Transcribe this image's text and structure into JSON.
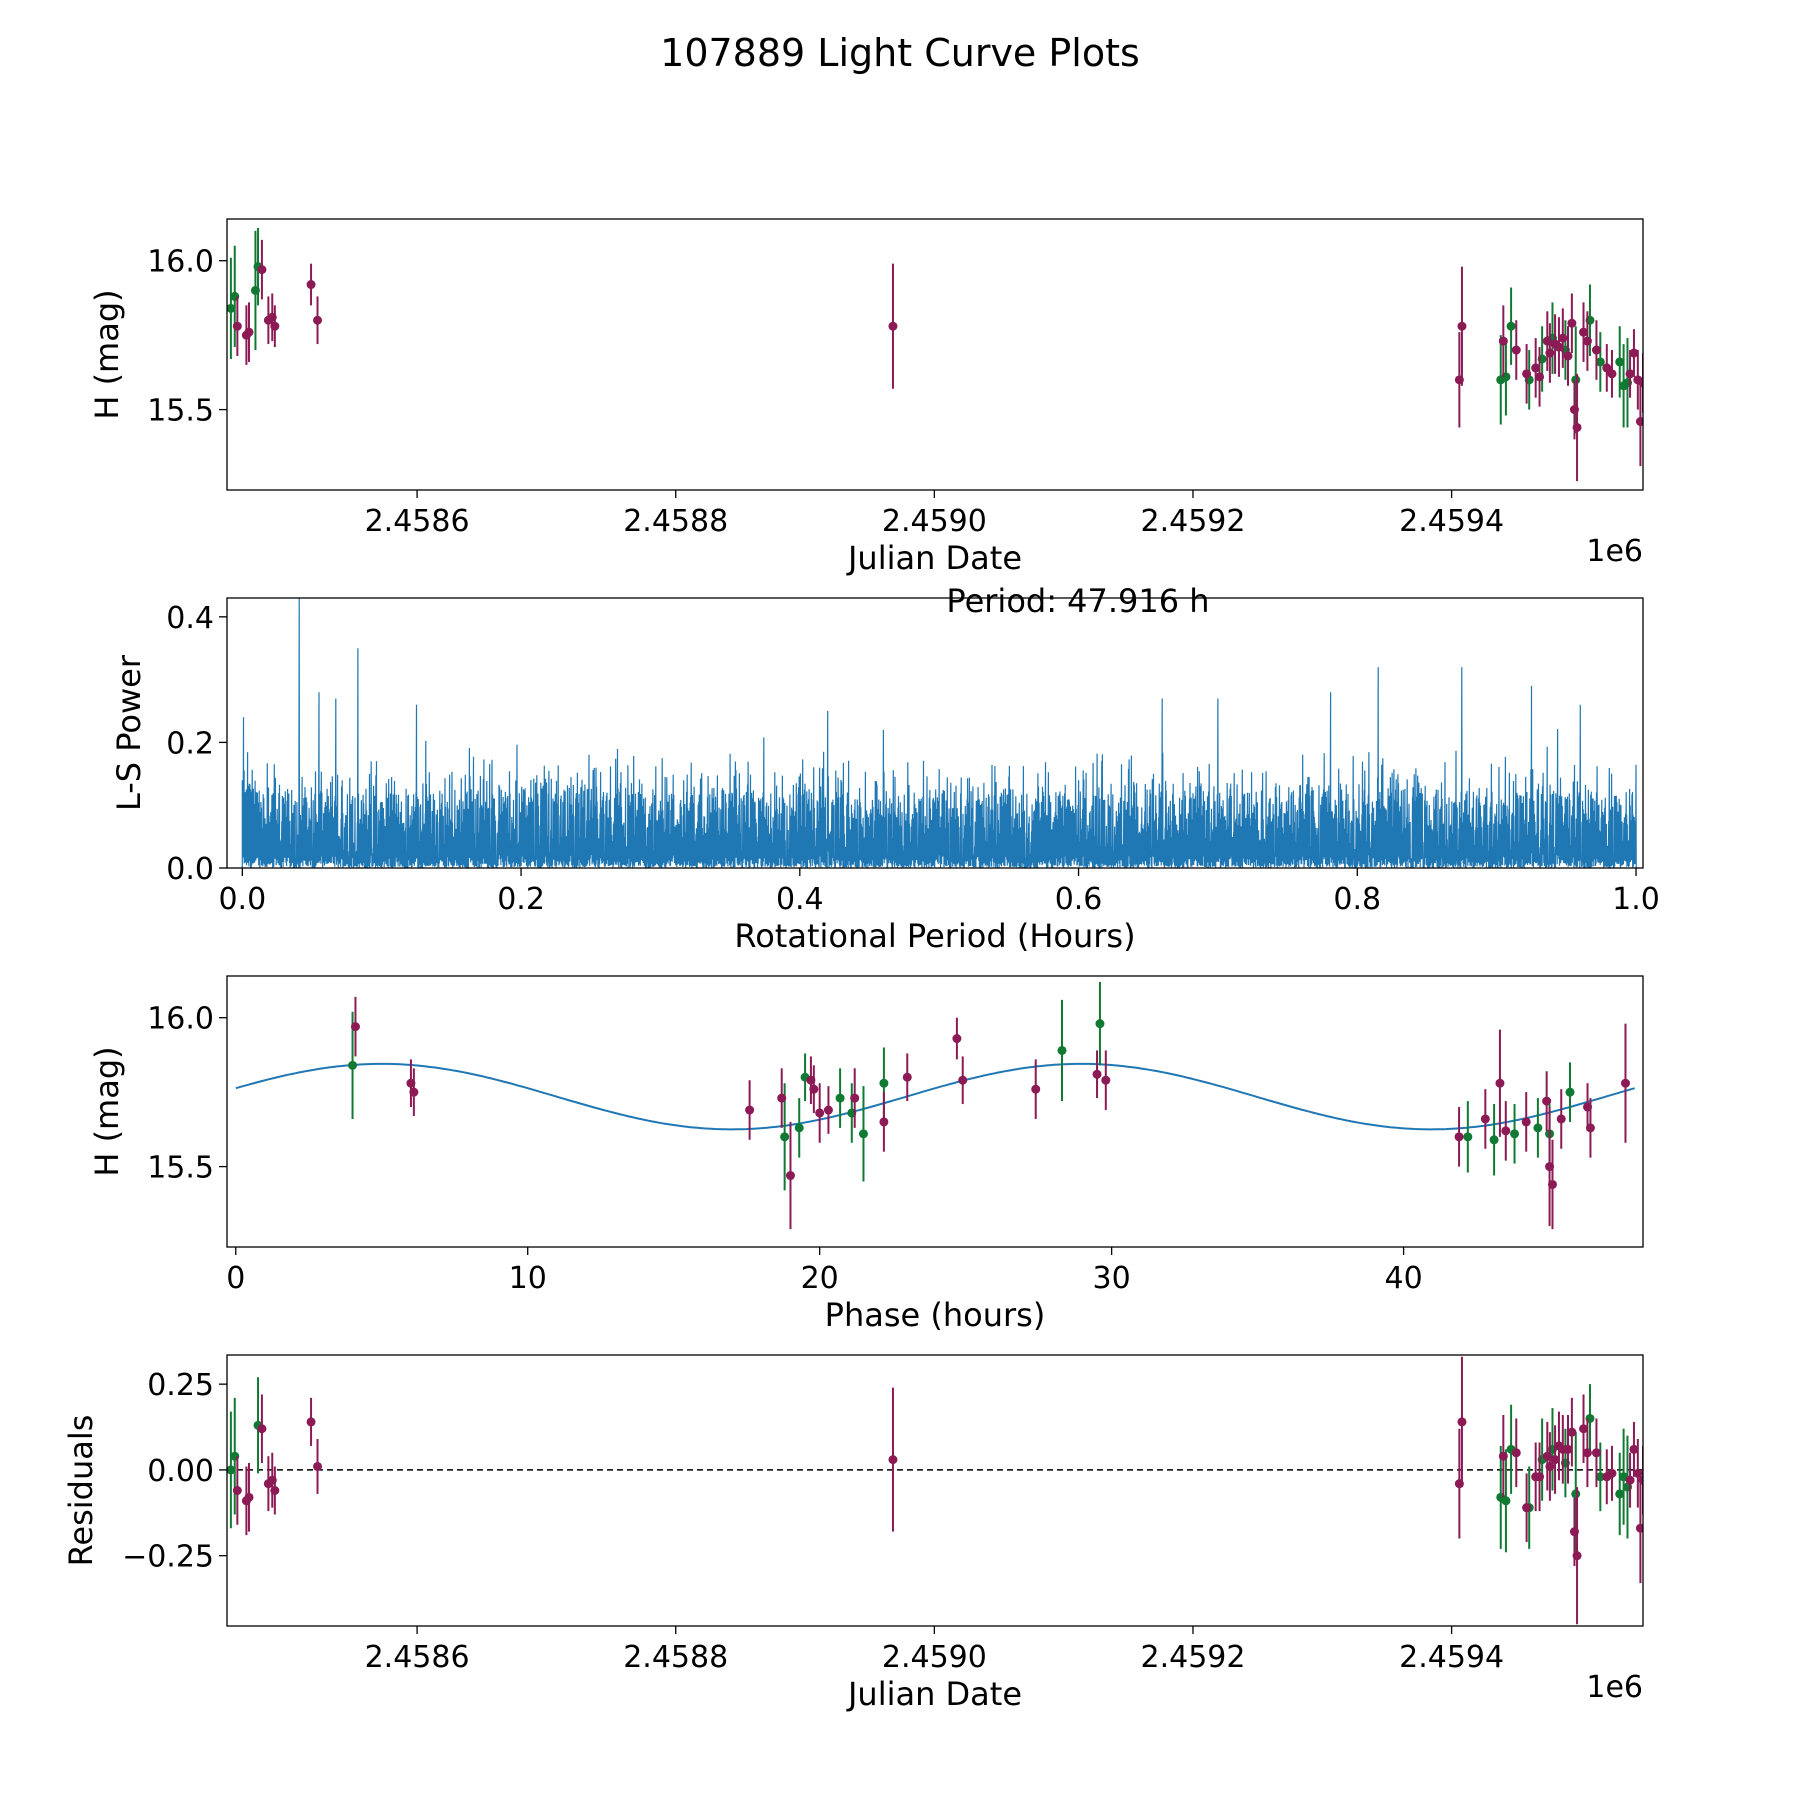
{
  "figure_title": "107889 Light Curve Plots",
  "colors": {
    "fit": "#1f77b4",
    "periodogram": "#1f77b4",
    "filter_g": "#107a33",
    "filter_r": "#8b1a55",
    "zero_line": "#000000"
  },
  "chart_data": [
    {
      "id": "lightcurve",
      "type": "scatter",
      "xlabel": "Julian Date",
      "ylabel": "H (mag)",
      "x_offset_label": "1e6",
      "x_ticks": [
        "2.4586",
        "2.4588",
        "2.4590",
        "2.4592",
        "2.4594"
      ],
      "y_ticks": [
        "15.5",
        "16.0"
      ],
      "xlim": [
        2458453,
        2459548
      ],
      "ylim": [
        15.23,
        16.14
      ],
      "series": [
        {
          "name": "g",
          "color": "#107a33",
          "points": [
            [
              2458456,
              15.84,
              0.17
            ],
            [
              2458459,
              15.88,
              0.17
            ],
            [
              2458477,
              15.98,
              0.13
            ],
            [
              2458475,
              15.9,
              0.2
            ],
            [
              2459438,
              15.6,
              0.15
            ],
            [
              2459442,
              15.61,
              0.13
            ],
            [
              2459446,
              15.78,
              0.13
            ],
            [
              2459460,
              15.6,
              0.1
            ],
            [
              2459470,
              15.67,
              0.11
            ],
            [
              2459478,
              15.74,
              0.12
            ],
            [
              2459488,
              15.7,
              0.1
            ],
            [
              2459496,
              15.6,
              0.18
            ],
            [
              2459507,
              15.8,
              0.12
            ],
            [
              2459515,
              15.66,
              0.1
            ],
            [
              2459530,
              15.66,
              0.12
            ],
            [
              2459533,
              15.58,
              0.14
            ],
            [
              2459536,
              15.59,
              0.15
            ]
          ]
        },
        {
          "name": "r",
          "color": "#8b1a55",
          "points": [
            [
              2458461,
              15.78,
              0.1
            ],
            [
              2458468,
              15.75,
              0.1
            ],
            [
              2458470,
              15.76,
              0.1
            ],
            [
              2458480,
              15.97,
              0.1
            ],
            [
              2458485,
              15.8,
              0.08
            ],
            [
              2458488,
              15.81,
              0.08
            ],
            [
              2458490,
              15.78,
              0.07
            ],
            [
              2458518,
              15.92,
              0.07
            ],
            [
              2458523,
              15.8,
              0.08
            ],
            [
              2458968,
              15.78,
              0.21
            ],
            [
              2459406,
              15.6,
              0.16
            ],
            [
              2459408,
              15.78,
              0.2
            ],
            [
              2459440,
              15.73,
              0.12
            ],
            [
              2459450,
              15.7,
              0.1
            ],
            [
              2459458,
              15.62,
              0.1
            ],
            [
              2459465,
              15.64,
              0.1
            ],
            [
              2459468,
              15.61,
              0.1
            ],
            [
              2459474,
              15.73,
              0.1
            ],
            [
              2459476,
              15.69,
              0.1
            ],
            [
              2459480,
              15.72,
              0.1
            ],
            [
              2459483,
              15.71,
              0.1
            ],
            [
              2459486,
              15.74,
              0.1
            ],
            [
              2459490,
              15.68,
              0.1
            ],
            [
              2459493,
              15.79,
              0.1
            ],
            [
              2459495,
              15.5,
              0.1
            ],
            [
              2459497,
              15.44,
              0.18
            ],
            [
              2459502,
              15.76,
              0.1
            ],
            [
              2459505,
              15.73,
              0.1
            ],
            [
              2459512,
              15.7,
              0.1
            ],
            [
              2459520,
              15.64,
              0.08
            ],
            [
              2459524,
              15.62,
              0.08
            ],
            [
              2459538,
              15.62,
              0.08
            ],
            [
              2459541,
              15.69,
              0.08
            ],
            [
              2459544,
              15.6,
              0.1
            ],
            [
              2459546,
              15.46,
              0.15
            ],
            [
              2459548,
              15.59,
              0.1
            ]
          ]
        }
      ]
    },
    {
      "id": "periodogram",
      "type": "line",
      "xlabel": "Rotational Period (Hours)",
      "ylabel": "L-S Power",
      "annotation": "Period: 47.916 h",
      "x_ticks": [
        "0.0",
        "0.2",
        "0.4",
        "0.6",
        "0.8",
        "1.0"
      ],
      "y_ticks": [
        "0.0",
        "0.2",
        "0.4"
      ],
      "xlim": [
        -0.011,
        1.005
      ],
      "ylim": [
        0,
        0.43
      ],
      "color": "#1f77b4",
      "peaks": [
        [
          0.041,
          0.43
        ],
        [
          0.083,
          0.35
        ],
        [
          0.055,
          0.28
        ],
        [
          0.067,
          0.27
        ],
        [
          0.125,
          0.26
        ],
        [
          0.815,
          0.32
        ],
        [
          0.875,
          0.32
        ],
        [
          0.781,
          0.28
        ],
        [
          0.66,
          0.27
        ],
        [
          0.7,
          0.27
        ],
        [
          0.925,
          0.29
        ],
        [
          0.96,
          0.26
        ],
        [
          0.42,
          0.25
        ],
        [
          0.46,
          0.22
        ],
        [
          0.001,
          0.24
        ]
      ],
      "typical_envelope": [
        0.12,
        0.19
      ]
    },
    {
      "id": "phased",
      "type": "scatter",
      "xlabel": "Phase (hours)",
      "ylabel": "H (mag)",
      "x_ticks": [
        "0",
        "10",
        "20",
        "30",
        "40"
      ],
      "y_ticks": [
        "15.5",
        "16.0"
      ],
      "xlim": [
        -0.3,
        48.2
      ],
      "ylim": [
        15.23,
        16.14
      ],
      "fit_curve": {
        "mean": 15.735,
        "amplitude": 0.11,
        "period": 23.958,
        "phase_peak": 5.0
      },
      "series": [
        {
          "name": "g",
          "color": "#107a33",
          "points": [
            [
              4.0,
              15.84,
              0.18
            ],
            [
              18.8,
              15.6,
              0.18
            ],
            [
              19.3,
              15.63,
              0.1
            ],
            [
              19.5,
              15.8,
              0.08
            ],
            [
              20.7,
              15.73,
              0.1
            ],
            [
              21.1,
              15.68,
              0.1
            ],
            [
              21.5,
              15.61,
              0.16
            ],
            [
              22.2,
              15.78,
              0.12
            ],
            [
              28.3,
              15.89,
              0.17
            ],
            [
              29.6,
              15.98,
              0.14
            ],
            [
              42.2,
              15.6,
              0.12
            ],
            [
              43.1,
              15.59,
              0.12
            ],
            [
              43.8,
              15.61,
              0.1
            ],
            [
              44.6,
              15.63,
              0.1
            ],
            [
              45.0,
              15.61,
              0.1
            ],
            [
              45.7,
              15.75,
              0.1
            ]
          ]
        },
        {
          "name": "r",
          "color": "#8b1a55",
          "points": [
            [
              4.1,
              15.97,
              0.1
            ],
            [
              6.0,
              15.78,
              0.08
            ],
            [
              6.1,
              15.75,
              0.08
            ],
            [
              17.6,
              15.69,
              0.1
            ],
            [
              18.7,
              15.73,
              0.1
            ],
            [
              19.0,
              15.47,
              0.18
            ],
            [
              19.7,
              15.79,
              0.08
            ],
            [
              19.8,
              15.76,
              0.08
            ],
            [
              20.0,
              15.68,
              0.1
            ],
            [
              20.3,
              15.69,
              0.08
            ],
            [
              21.2,
              15.73,
              0.1
            ],
            [
              22.2,
              15.65,
              0.1
            ],
            [
              23.0,
              15.8,
              0.08
            ],
            [
              24.7,
              15.93,
              0.07
            ],
            [
              24.9,
              15.79,
              0.08
            ],
            [
              27.4,
              15.76,
              0.1
            ],
            [
              29.5,
              15.81,
              0.08
            ],
            [
              29.8,
              15.79,
              0.1
            ],
            [
              41.9,
              15.6,
              0.1
            ],
            [
              42.8,
              15.66,
              0.1
            ],
            [
              43.3,
              15.78,
              0.18
            ],
            [
              43.5,
              15.62,
              0.1
            ],
            [
              44.2,
              15.65,
              0.1
            ],
            [
              44.9,
              15.72,
              0.1
            ],
            [
              45.0,
              15.5,
              0.2
            ],
            [
              45.1,
              15.44,
              0.15
            ],
            [
              45.4,
              15.66,
              0.1
            ],
            [
              46.3,
              15.7,
              0.08
            ],
            [
              46.4,
              15.63,
              0.1
            ],
            [
              47.6,
              15.78,
              0.2
            ]
          ]
        }
      ]
    },
    {
      "id": "residuals",
      "type": "scatter",
      "xlabel": "Julian Date",
      "ylabel": "Residuals",
      "x_offset_label": "1e6",
      "x_ticks": [
        "2.4586",
        "2.4588",
        "2.4590",
        "2.4592",
        "2.4594"
      ],
      "y_ticks": [
        "0.25",
        "0.00",
        "−0.25"
      ],
      "xlim": [
        2458453,
        2459548
      ],
      "ylim": [
        -0.455,
        0.335
      ],
      "zero_line": 0,
      "series": [
        {
          "name": "g",
          "color": "#107a33",
          "points": [
            [
              2458456,
              0.0,
              0.17
            ],
            [
              2458459,
              0.04,
              0.17
            ],
            [
              2458477,
              0.13,
              0.14
            ],
            [
              2459438,
              -0.08,
              0.15
            ],
            [
              2459442,
              -0.09,
              0.15
            ],
            [
              2459446,
              0.06,
              0.13
            ],
            [
              2459460,
              -0.11,
              0.12
            ],
            [
              2459470,
              0.03,
              0.12
            ],
            [
              2459478,
              0.06,
              0.12
            ],
            [
              2459488,
              0.02,
              0.1
            ],
            [
              2459496,
              -0.07,
              0.18
            ],
            [
              2459507,
              0.15,
              0.1
            ],
            [
              2459515,
              -0.02,
              0.1
            ],
            [
              2459530,
              -0.07,
              0.12
            ],
            [
              2459533,
              -0.02,
              0.14
            ],
            [
              2459536,
              -0.05,
              0.15
            ]
          ]
        },
        {
          "name": "r",
          "color": "#8b1a55",
          "points": [
            [
              2458461,
              -0.06,
              0.1
            ],
            [
              2458468,
              -0.09,
              0.1
            ],
            [
              2458470,
              -0.08,
              0.1
            ],
            [
              2458480,
              0.12,
              0.1
            ],
            [
              2458485,
              -0.04,
              0.08
            ],
            [
              2458488,
              -0.03,
              0.08
            ],
            [
              2458490,
              -0.06,
              0.07
            ],
            [
              2458518,
              0.14,
              0.07
            ],
            [
              2458523,
              0.01,
              0.08
            ],
            [
              2458968,
              0.03,
              0.21
            ],
            [
              2459406,
              -0.04,
              0.16
            ],
            [
              2459408,
              0.14,
              0.19
            ],
            [
              2459440,
              0.04,
              0.12
            ],
            [
              2459450,
              0.05,
              0.1
            ],
            [
              2459458,
              -0.11,
              0.1
            ],
            [
              2459465,
              -0.02,
              0.1
            ],
            [
              2459468,
              -0.02,
              0.1
            ],
            [
              2459474,
              0.04,
              0.1
            ],
            [
              2459476,
              0.01,
              0.1
            ],
            [
              2459480,
              0.03,
              0.1
            ],
            [
              2459483,
              0.07,
              0.1
            ],
            [
              2459486,
              0.06,
              0.1
            ],
            [
              2459490,
              0.06,
              0.1
            ],
            [
              2459493,
              0.11,
              0.1
            ],
            [
              2459495,
              -0.18,
              0.1
            ],
            [
              2459497,
              -0.25,
              0.2
            ],
            [
              2459502,
              0.12,
              0.1
            ],
            [
              2459505,
              0.05,
              0.1
            ],
            [
              2459512,
              0.05,
              0.1
            ],
            [
              2459520,
              -0.02,
              0.08
            ],
            [
              2459524,
              -0.01,
              0.08
            ],
            [
              2459538,
              -0.03,
              0.08
            ],
            [
              2459541,
              0.06,
              0.08
            ],
            [
              2459544,
              -0.01,
              0.1
            ],
            [
              2459546,
              -0.17,
              0.16
            ],
            [
              2459548,
              -0.03,
              0.1
            ]
          ]
        }
      ]
    }
  ]
}
